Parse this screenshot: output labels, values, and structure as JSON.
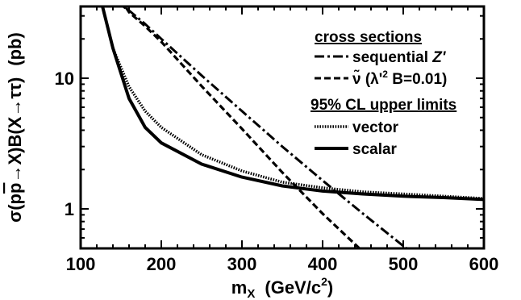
{
  "chart_data": {
    "type": "line",
    "xlabel": "m_X (GeV/c^2)",
    "xlabel_parts": {
      "main": "m",
      "sub": "X",
      "units": "(GeV/c",
      "sup": "2",
      "close": ")"
    },
    "ylabel": "σ(pp̄→X)B(X→ττ) (pb)",
    "ylabel_parts": {
      "sigma": "σ(p",
      "pbar": "p",
      "mid": "→X)B(X→ττ)",
      "units": "(pb)"
    },
    "xlim": [
      100,
      600
    ],
    "ylim": [
      0.5,
      35
    ],
    "y_scale": "log",
    "x_ticks": [
      100,
      200,
      300,
      400,
      500,
      600
    ],
    "x_tick_labels": [
      "100",
      "200",
      "300",
      "400",
      "500",
      "600"
    ],
    "y_tick_labels": [
      "1",
      "10"
    ],
    "grid": false,
    "legend": {
      "position": "top-right",
      "headers": [
        "cross sections",
        "95% CL upper limits"
      ],
      "entries": [
        {
          "label": "sequential Z'",
          "group": 0,
          "style": "dash-dot"
        },
        {
          "label": "ν̃ (λ'² B=0.01)",
          "group": 0,
          "style": "dashed"
        },
        {
          "label": "vector",
          "group": 1,
          "style": "dotted"
        },
        {
          "label": "scalar",
          "group": 1,
          "style": "solid"
        }
      ],
      "seqZ_parts": {
        "text": "sequential ",
        "Z": "Z'"
      },
      "snu_parts": {
        "nu": "ν̃",
        "pre": " (λ'",
        "sup": "2",
        "post": " B=0.01)"
      }
    },
    "series": [
      {
        "name": "sequential Z'",
        "style": "dash-dot",
        "x": [
          140,
          160,
          180,
          200,
          250,
          300,
          350,
          400,
          450,
          500,
          510
        ],
        "y": [
          40,
          33,
          26,
          20,
          10.5,
          5.6,
          3.0,
          1.65,
          0.92,
          0.52,
          0.47
        ]
      },
      {
        "name": "ν̃ (λ'² B=0.01)",
        "style": "dashed",
        "x": [
          150,
          160,
          180,
          200,
          250,
          300,
          350,
          400,
          450,
          460
        ],
        "y": [
          40,
          32,
          25,
          19,
          8.7,
          4.1,
          1.9,
          0.92,
          0.47,
          0.41
        ]
      },
      {
        "name": "vector",
        "style": "dotted",
        "x": [
          125,
          130,
          140,
          160,
          180,
          200,
          250,
          300,
          350,
          400,
          450,
          500,
          550,
          600
        ],
        "y": [
          40,
          30,
          17,
          8.6,
          5.6,
          4.2,
          2.6,
          1.95,
          1.6,
          1.45,
          1.35,
          1.3,
          1.25,
          1.2
        ]
      },
      {
        "name": "scalar",
        "style": "solid",
        "x": [
          125,
          130,
          140,
          160,
          180,
          200,
          250,
          300,
          350,
          400,
          450,
          500,
          550,
          600
        ],
        "y": [
          40,
          30,
          17,
          7.0,
          4.2,
          3.2,
          2.2,
          1.75,
          1.5,
          1.37,
          1.3,
          1.25,
          1.22,
          1.18
        ]
      }
    ]
  }
}
